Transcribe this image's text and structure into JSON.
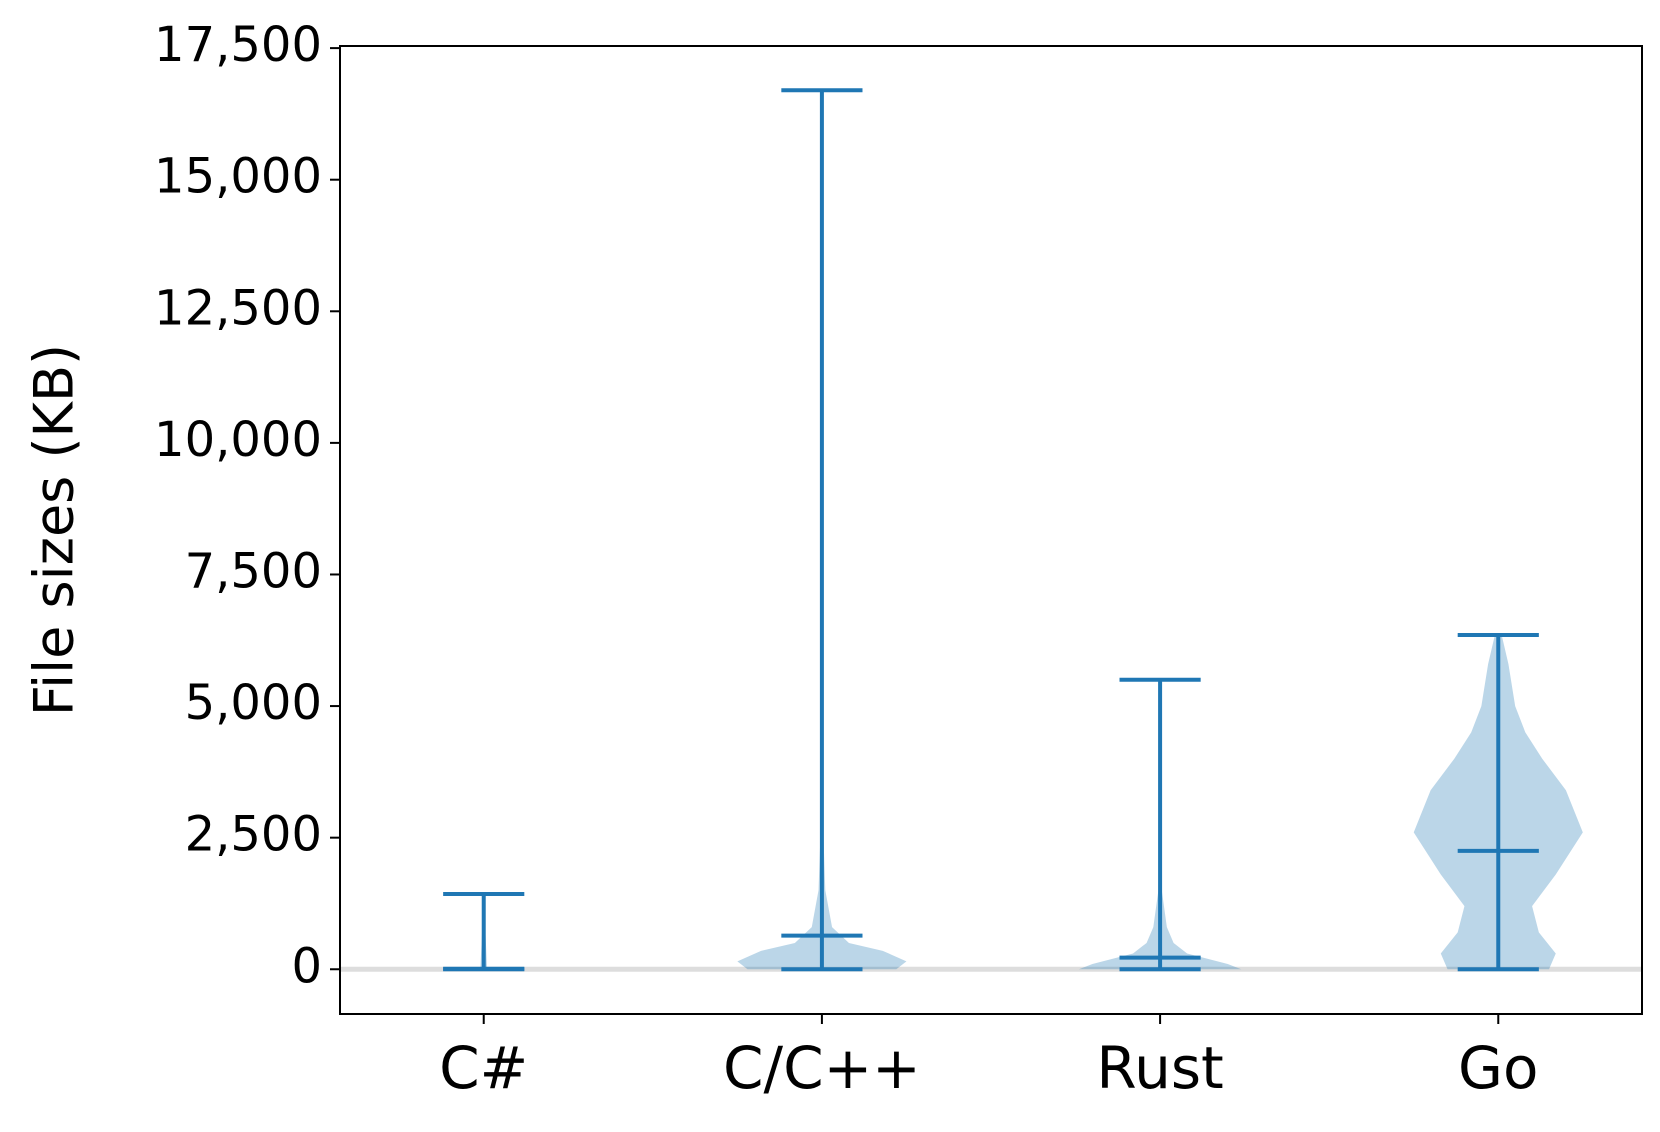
{
  "chart_data": {
    "type": "violin",
    "y_label": "File sizes (KB)",
    "categories": [
      "C#",
      "C/C++",
      "Rust",
      "Go"
    ],
    "max": [
      1430,
      16700,
      5500,
      6350
    ],
    "min": [
      0,
      0,
      0,
      0
    ],
    "median": [
      10,
      640,
      220,
      2250
    ],
    "violins": [
      {
        "y": [
          0,
          700,
          1430
        ],
        "width": [
          0.01,
          0.005,
          0
        ]
      },
      {
        "y": [
          0,
          150,
          350,
          500,
          800,
          1500,
          3000,
          16700
        ],
        "width": [
          0.22,
          0.25,
          0.18,
          0.08,
          0.03,
          0.01,
          0.002,
          0
        ]
      },
      {
        "y": [
          0,
          100,
          300,
          500,
          800,
          1500,
          5500
        ],
        "width": [
          0.24,
          0.2,
          0.08,
          0.04,
          0.02,
          0.005,
          0
        ]
      },
      {
        "y": [
          0,
          300,
          700,
          1200,
          1800,
          2600,
          3400,
          4000,
          4500,
          5000,
          5800,
          6350
        ],
        "width": [
          0.15,
          0.17,
          0.12,
          0.1,
          0.17,
          0.25,
          0.2,
          0.13,
          0.08,
          0.05,
          0.03,
          0.01
        ]
      }
    ],
    "color": "#1f77b4",
    "reference_line": 0,
    "reference_color": "#dddddd",
    "ylim": [
      -850,
      17540
    ],
    "yticks": [
      0,
      {
        "value": 2500,
        "label": "2,500"
      },
      {
        "value": 5000,
        "label": "5,000"
      },
      {
        "value": 7500,
        "label": "7,500"
      },
      {
        "value": 10000,
        "label": "10,000"
      },
      {
        "value": 12500,
        "label": "12,500"
      },
      {
        "value": 15000,
        "label": "15,000"
      },
      {
        "value": 17500,
        "label": "17,500"
      }
    ]
  }
}
